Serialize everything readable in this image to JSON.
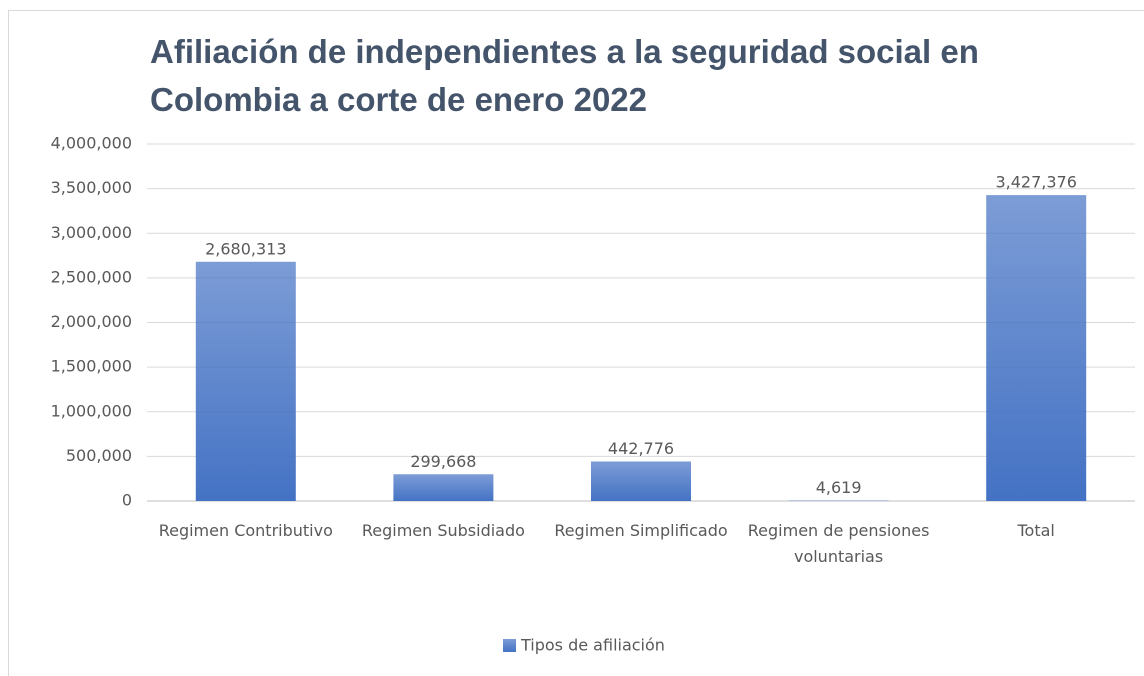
{
  "chart_data": {
    "type": "bar",
    "title": "Afiliación de independientes a la seguridad social en Colombia a corte de enero 2022",
    "categories": [
      "Regimen Contributivo",
      "Regimen Subsidiado",
      "Regimen Simplificado",
      "Regimen de pensiones voluntarias",
      "Total"
    ],
    "series": [
      {
        "name": "Tipos de afiliación",
        "color": "#4472c4",
        "values": [
          2680313,
          299668,
          442776,
          4619,
          3427376
        ],
        "value_labels": [
          "2,680,313",
          "299,668",
          "442,776",
          "4,619",
          "3,427,376"
        ]
      }
    ],
    "ylim": [
      0,
      4000000
    ],
    "yticks": [
      0,
      {
        "value": 500000,
        "label": "500,000"
      },
      {
        "value": 1000000,
        "label": "1,000,000"
      },
      {
        "value": 1500000,
        "label": "1,500,000"
      },
      {
        "value": 2000000,
        "label": "2,000,000"
      },
      {
        "value": 2500000,
        "label": "2,500,000"
      },
      {
        "value": 3000000,
        "label": "3,000,000"
      },
      {
        "value": 3500000,
        "label": "3,500,000"
      },
      {
        "value": 4000000,
        "label": "4,000,000"
      }
    ],
    "grid": true,
    "legend": "bottom"
  }
}
